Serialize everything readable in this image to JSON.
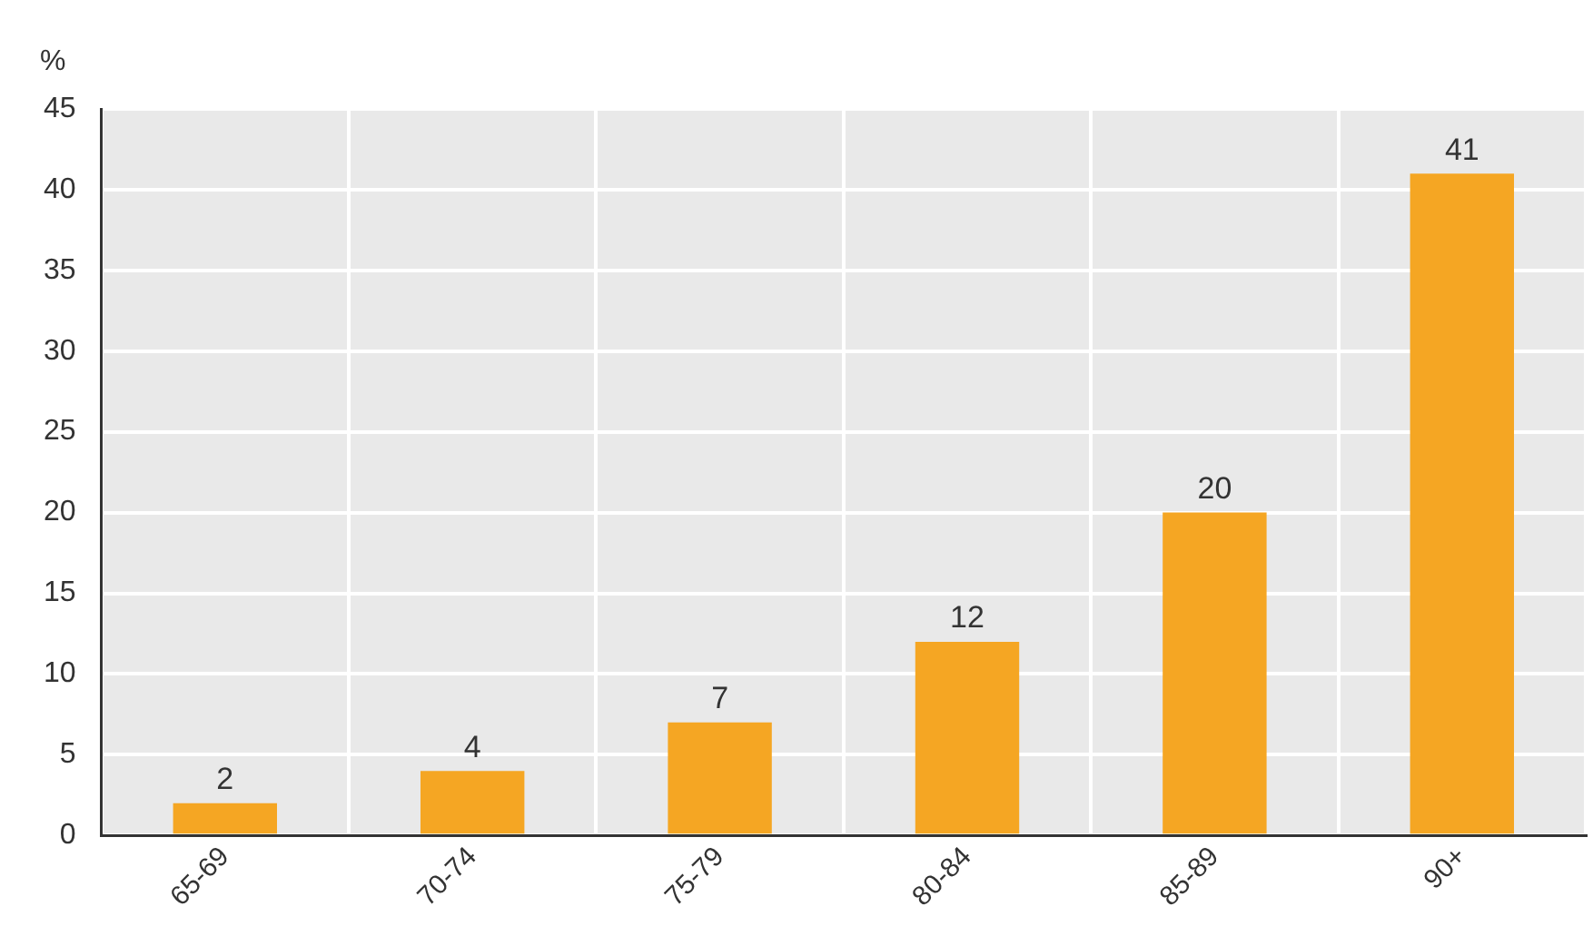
{
  "chart_data": {
    "type": "bar",
    "ylabel": "%",
    "categories": [
      "65-69",
      "70-74",
      "75-79",
      "80-84",
      "85-89",
      "90+"
    ],
    "values": [
      2,
      4,
      7,
      12,
      20,
      41
    ],
    "color": "#f5a623",
    "ylim": [
      0,
      45
    ],
    "yticks": [
      0,
      5,
      10,
      15,
      20,
      25,
      30,
      35,
      40,
      45
    ],
    "grid": true,
    "data_labels": true
  }
}
